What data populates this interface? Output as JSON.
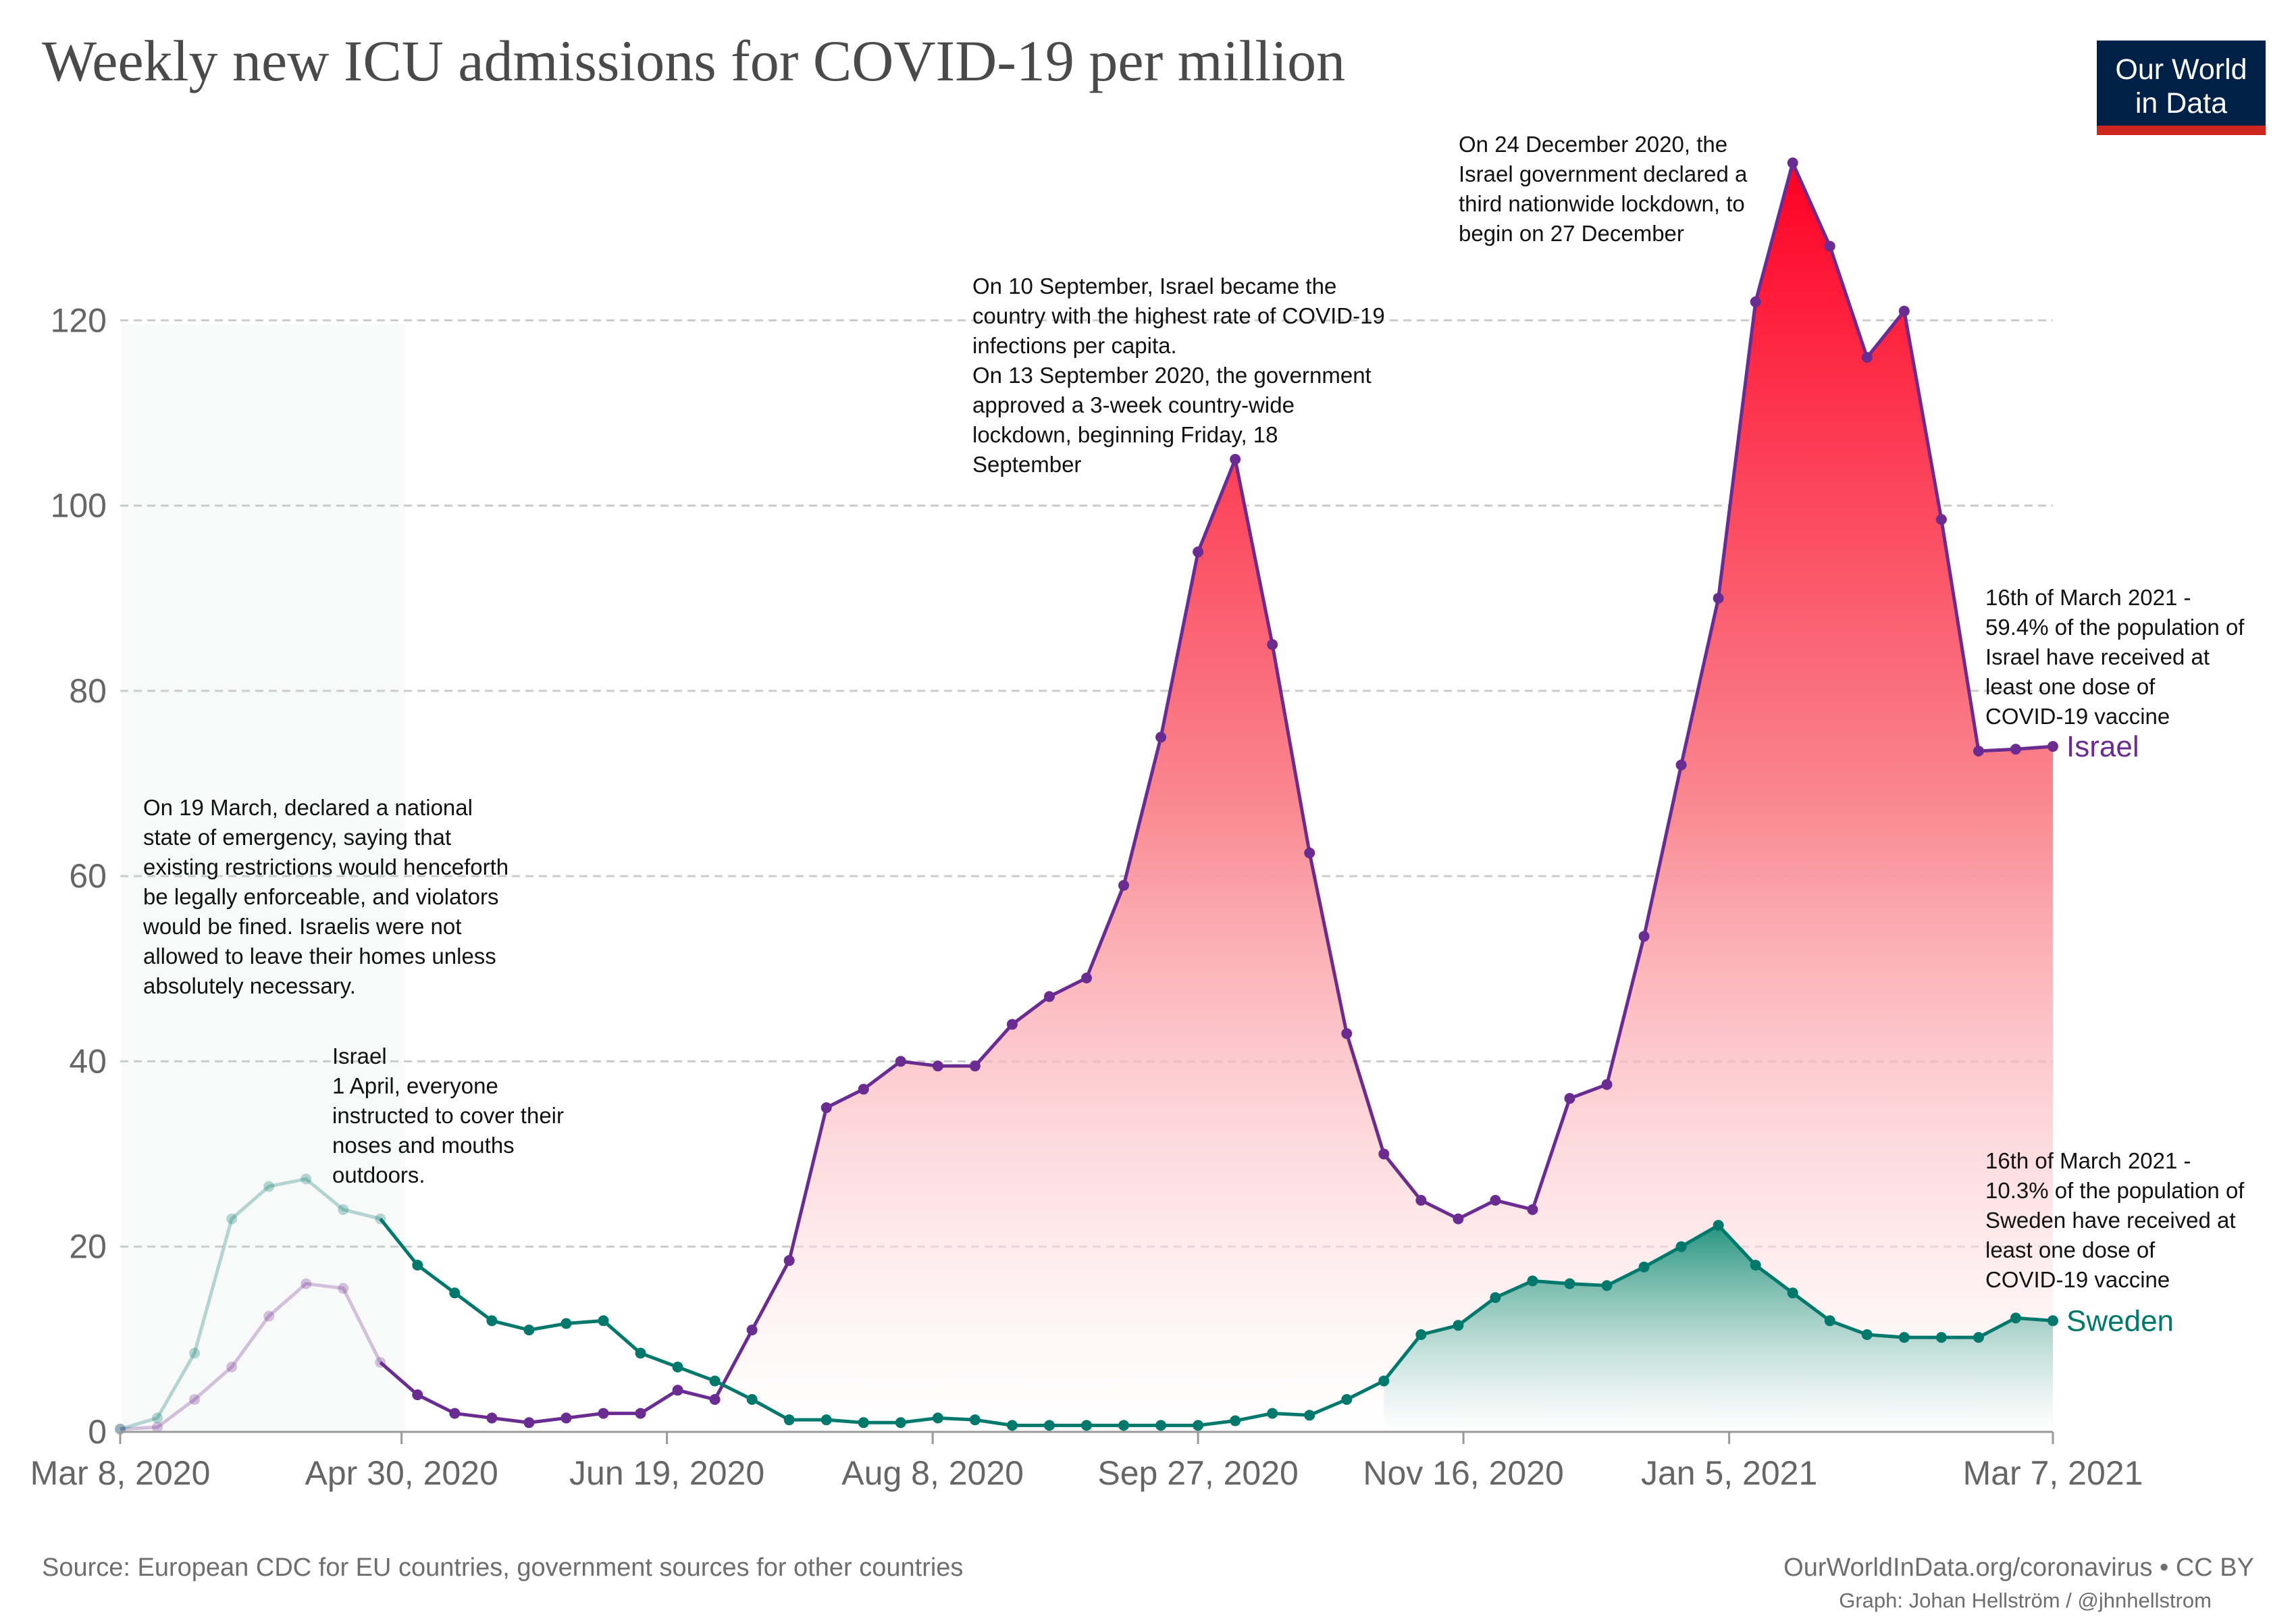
{
  "header": {
    "title": "Weekly new ICU admissions for COVID-19 per million",
    "logo_line1": "Our World",
    "logo_line2": "in Data"
  },
  "footer": {
    "source": "Source: European CDC for EU countries, government sources for other countries",
    "credit": "OurWorldInData.org/coronavirus • CC BY",
    "graph_credit": "Graph: Johan Hellström / @jhnhellstrom"
  },
  "colors": {
    "israel": "#6a2c91",
    "sweden": "#00786c",
    "israel_fill_top": "#ff0024",
    "sweden_fill_top": "#25957f",
    "grid": "#cccccc"
  },
  "chart_data": {
    "type": "area",
    "title": "Weekly new ICU admissions for COVID-19 per million",
    "xlabel": "",
    "ylabel": "",
    "ylim": [
      0,
      140
    ],
    "yticks": [
      0,
      20,
      40,
      60,
      80,
      100,
      120
    ],
    "x_start": "Mar 8, 2020",
    "x_end": "Mar 7, 2021",
    "xtick_labels": [
      "Mar 8, 2020",
      "Apr 30, 2020",
      "Jun 19, 2020",
      "Aug 8, 2020",
      "Sep 27, 2020",
      "Nov 16, 2020",
      "Jan 5, 2021",
      "Mar 7, 2021"
    ],
    "xtick_weeks": [
      0,
      7.57,
      14.71,
      21.86,
      29.0,
      36.14,
      43.29,
      52.0
    ],
    "faded_until_week": 7.57,
    "series": [
      {
        "name": "Israel",
        "label": "Israel",
        "values": [
          0.3,
          0.5,
          3.5,
          7,
          12.5,
          16,
          15.5,
          7.5,
          4,
          2,
          1.5,
          1,
          1.5,
          2,
          2,
          4.5,
          3.5,
          11,
          18.5,
          35,
          37,
          40,
          39.5,
          39.5,
          44,
          47,
          49,
          59,
          75,
          95,
          105,
          85,
          62.5,
          43,
          30,
          25,
          23,
          25,
          24,
          36,
          37.5,
          53.5,
          72,
          90,
          122,
          137,
          128,
          116,
          121,
          98.5,
          73.5,
          73.7,
          74
        ]
      },
      {
        "name": "Sweden",
        "label": "Sweden",
        "values": [
          0.3,
          1.5,
          8.5,
          23,
          26.5,
          27.3,
          24,
          23,
          18,
          15,
          12,
          11,
          11.7,
          12,
          8.5,
          7,
          5.5,
          3.5,
          1.3,
          1.3,
          1,
          1,
          1.5,
          1.3,
          0.7,
          0.7,
          0.7,
          0.7,
          0.7,
          0.7,
          1.2,
          2,
          1.8,
          3.5,
          5.5,
          10.5,
          11.5,
          14.5,
          16.3,
          16,
          15.8,
          17.8,
          20,
          22.3,
          18,
          15,
          12,
          10.5,
          10.2,
          10.2,
          10.2,
          12.3,
          12
        ]
      }
    ],
    "annotations": [
      {
        "id": "emergency",
        "lines": [
          "On 19 March, declared a national",
          "state of emergency, saying that",
          "existing restrictions would henceforth",
          "be legally enforceable, and violators",
          "would be fined. Israelis were not",
          "allowed to leave their homes unless",
          "absolutely necessary."
        ]
      },
      {
        "id": "masks",
        "lines": [
          "Israel",
          "1 April, everyone",
          "instructed to cover their",
          "noses and mouths",
          "outdoors."
        ]
      },
      {
        "id": "september",
        "lines": [
          "On 10 September, Israel became the",
          "country with the highest rate of COVID-19",
          "infections per capita.",
          "On 13 September 2020, the government",
          "approved a 3-week country-wide",
          "lockdown, beginning Friday, 18",
          "September"
        ]
      },
      {
        "id": "december",
        "lines": [
          "On 24 December 2020, the",
          "Israel government declared a",
          "third nationwide lockdown, to",
          "begin on 27 December"
        ]
      },
      {
        "id": "vacc_israel",
        "lines": [
          "16th of March 2021 -",
          "59.4% of the population of",
          "Israel  have received at",
          "least one dose of",
          "COVID-19 vaccine"
        ]
      },
      {
        "id": "vacc_sweden",
        "lines": [
          "16th of March 2021 -",
          "10.3% of the population of",
          "Sweden have received at",
          "least one dose of",
          "COVID-19 vaccine"
        ]
      }
    ]
  }
}
